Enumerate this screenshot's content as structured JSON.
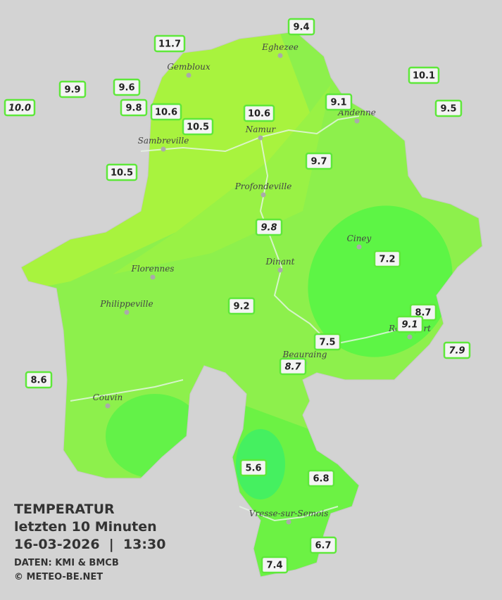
{
  "legend": {
    "title": "TEMPERATUR",
    "period": "letzten 10 Minuten",
    "datetime": "16-03-2026  |  13:30",
    "source": "DATEN: KMI & BMCB",
    "copyright": "© METEO-BE.NET"
  },
  "towns": [
    {
      "name": "Eghezee"
    },
    {
      "name": "Gembloux"
    },
    {
      "name": "Andenne"
    },
    {
      "name": "Namur"
    },
    {
      "name": "Sambreville"
    },
    {
      "name": "Profondeville"
    },
    {
      "name": "Ciney"
    },
    {
      "name": "Florennes"
    },
    {
      "name": "Dinant"
    },
    {
      "name": "Philippeville"
    },
    {
      "name": "Rochefort"
    },
    {
      "name": "Beauraing"
    },
    {
      "name": "Couvin"
    },
    {
      "name": "Vresse-sur-Semois"
    }
  ],
  "stations": [
    {
      "label": "9.4"
    },
    {
      "label": "11.7"
    },
    {
      "label": "9.9"
    },
    {
      "label": "9.6"
    },
    {
      "label": "10.1"
    },
    {
      "label": "9.8"
    },
    {
      "label": "10.6"
    },
    {
      "label": "10.0"
    },
    {
      "label": "9.1"
    },
    {
      "label": "10.6"
    },
    {
      "label": "9.5"
    },
    {
      "label": "10.5"
    },
    {
      "label": "9.7"
    },
    {
      "label": "10.5"
    },
    {
      "label": "9.8"
    },
    {
      "label": "7.2"
    },
    {
      "label": "9.2"
    },
    {
      "label": "8.7"
    },
    {
      "label": "9.1"
    },
    {
      "label": "7.5"
    },
    {
      "label": "7.9"
    },
    {
      "label": "8.7"
    },
    {
      "label": "8.6"
    },
    {
      "label": "5.6"
    },
    {
      "label": "6.8"
    },
    {
      "label": "6.7"
    },
    {
      "label": "7.4"
    }
  ]
}
